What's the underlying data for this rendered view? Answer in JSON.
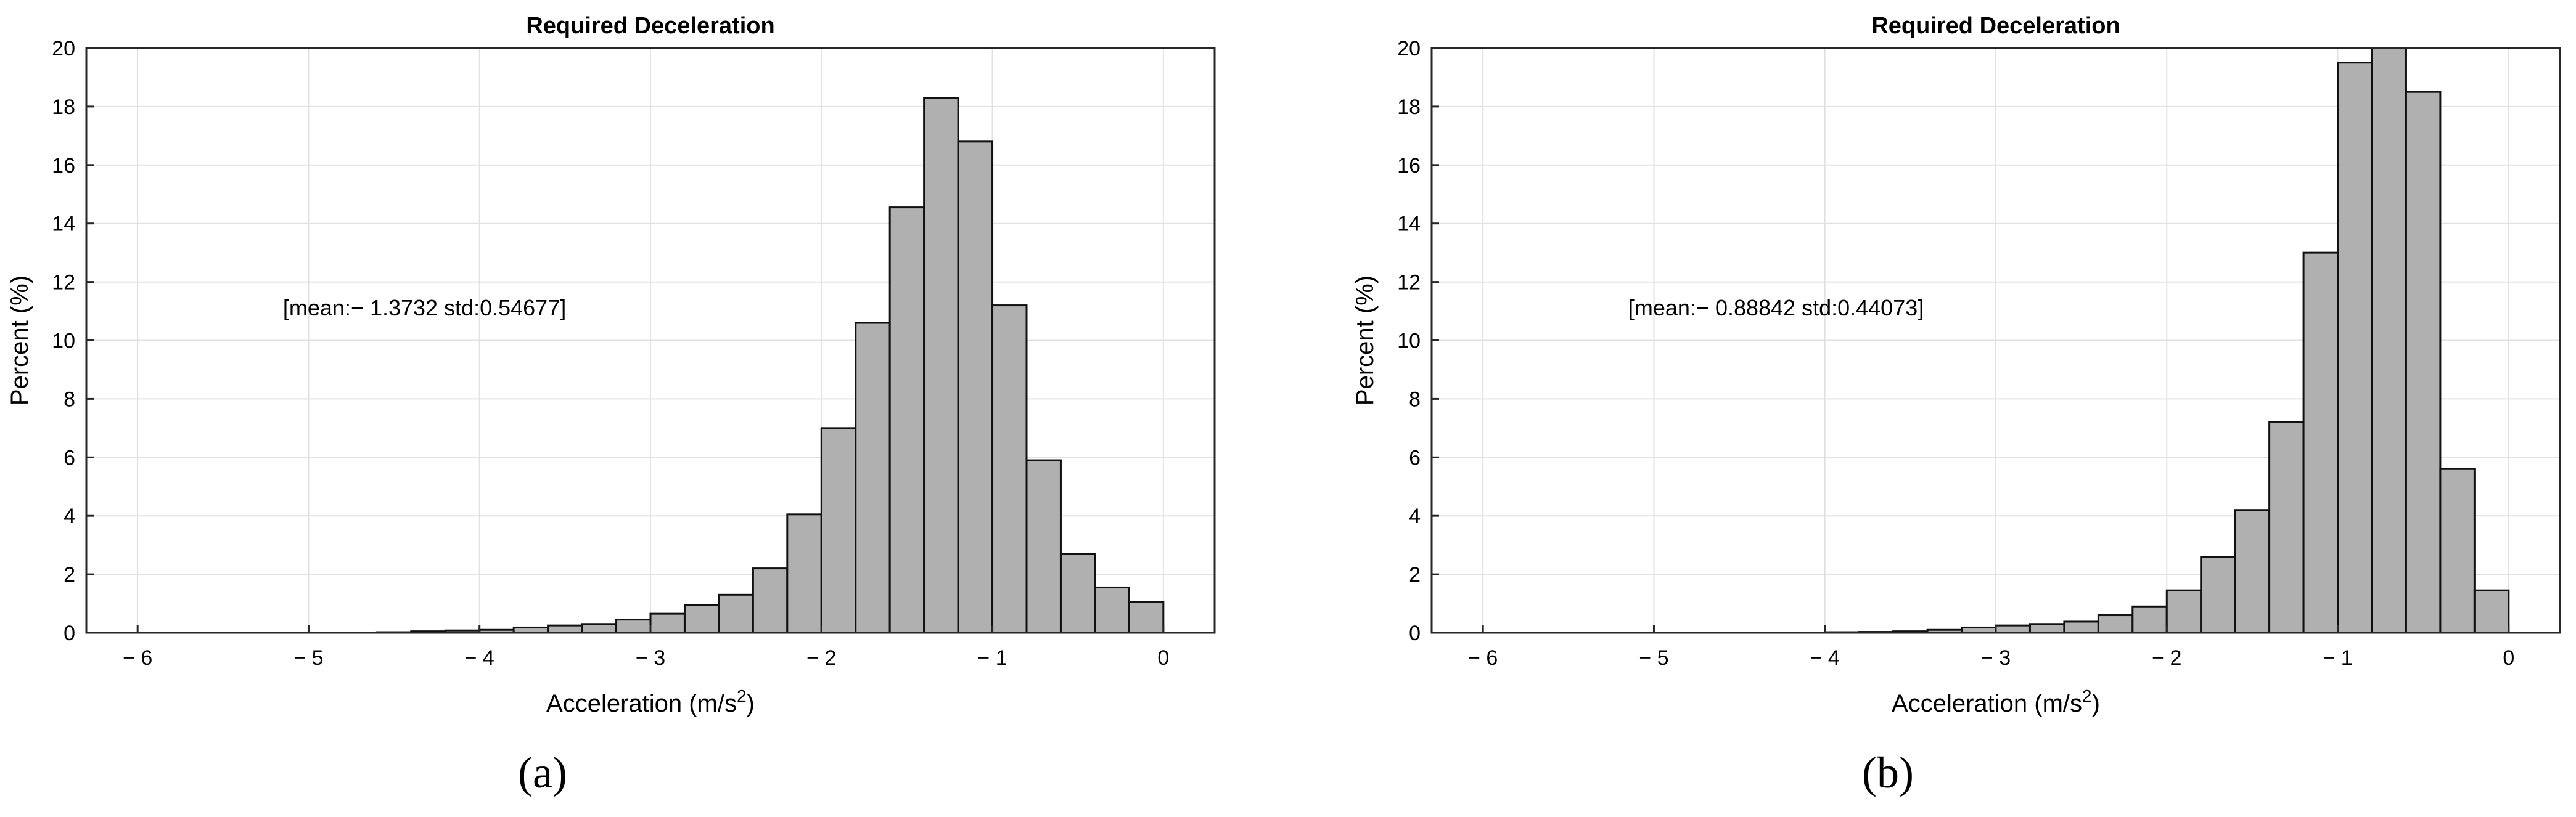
{
  "chart_data": [
    {
      "type": "bar",
      "title": "Required Deceleration",
      "xlabel": "Acceleration (m/s",
      "xlabel_sup": "2",
      "xlabel_close": ")",
      "ylabel": "Percent (%)",
      "xlim": [
        -6.3,
        0.3
      ],
      "ylim": [
        0,
        20
      ],
      "xticks": [
        -6,
        -5,
        -4,
        -3,
        -2,
        -1,
        0
      ],
      "xtick_labels": [
        "− 6",
        "− 5",
        "− 4",
        "− 3",
        "− 2",
        "− 1",
        "0"
      ],
      "yticks": [
        0,
        2,
        4,
        6,
        8,
        10,
        12,
        14,
        16,
        18,
        20
      ],
      "grid": true,
      "annotation": "[mean:− 1.3732 std:0.54677]",
      "panel_label": "(a)",
      "bin_edges": [
        -6.0,
        -5.8,
        -5.6,
        -5.4,
        -5.2,
        -5.0,
        -4.8,
        -4.6,
        -4.4,
        -4.2,
        -4.0,
        -3.8,
        -3.6,
        -3.4,
        -3.2,
        -3.0,
        -2.8,
        -2.6,
        -2.4,
        -2.2,
        -2.0,
        -1.8,
        -1.6,
        -1.4,
        -1.2,
        -1.0,
        -0.8,
        -0.6,
        -0.4,
        -0.2,
        0.0
      ],
      "values": [
        0,
        0,
        0,
        0,
        0,
        0,
        0,
        0.02,
        0.05,
        0.08,
        0.1,
        0.18,
        0.25,
        0.3,
        0.45,
        0.65,
        0.95,
        1.3,
        2.2,
        4.05,
        7.0,
        10.6,
        14.55,
        18.3,
        16.8,
        11.2,
        5.9,
        2.7,
        1.55,
        1.05
      ]
    },
    {
      "type": "bar",
      "title": "Required Deceleration",
      "xlabel": "Acceleration (m/s",
      "xlabel_sup": "2",
      "xlabel_close": ")",
      "ylabel": "Percent (%)",
      "xlim": [
        -6.3,
        0.3
      ],
      "ylim": [
        0,
        20
      ],
      "xticks": [
        -6,
        -5,
        -4,
        -3,
        -2,
        -1,
        0
      ],
      "xtick_labels": [
        "− 6",
        "− 5",
        "− 4",
        "− 3",
        "− 2",
        "− 1",
        "0"
      ],
      "yticks": [
        0,
        2,
        4,
        6,
        8,
        10,
        12,
        14,
        16,
        18,
        20
      ],
      "grid": true,
      "annotation": "[mean:− 0.88842 std:0.44073]",
      "panel_label": "(b)",
      "bin_edges": [
        -4.0,
        -3.8,
        -3.6,
        -3.4,
        -3.2,
        -3.0,
        -2.8,
        -2.6,
        -2.4,
        -2.2,
        -2.0,
        -1.8,
        -1.6,
        -1.4,
        -1.2,
        -1.0,
        -0.8,
        -0.6,
        -0.4,
        -0.2,
        0.0
      ],
      "values": [
        0.02,
        0.03,
        0.05,
        0.1,
        0.18,
        0.25,
        0.3,
        0.38,
        0.6,
        0.9,
        1.45,
        2.6,
        4.2,
        7.2,
        13.0,
        19.5,
        20.1,
        18.5,
        5.6,
        1.45
      ]
    }
  ]
}
